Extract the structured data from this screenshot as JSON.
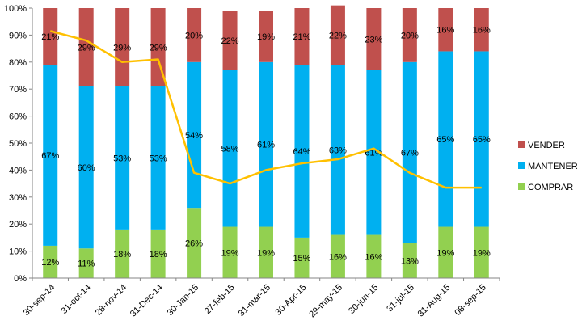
{
  "chart_data": {
    "type": "bar",
    "stacked": true,
    "categories": [
      "30-sep-14",
      "31-oct-14",
      "28-nov-14",
      "31-Dec-14",
      "30-Jan-15",
      "27-feb-15",
      "31-mar-15",
      "30-Apr-15",
      "29-may-15",
      "30-jun-15",
      "31-jul-15",
      "31-Aug-15",
      "08-sep-15"
    ],
    "series": [
      {
        "name": "COMPRAR",
        "color": "#92D050",
        "values": [
          12,
          11,
          18,
          18,
          26,
          19,
          19,
          15,
          16,
          16,
          13,
          19,
          19
        ],
        "labels": [
          "12%",
          "11%",
          "18%",
          "18%",
          "26%",
          "19%",
          "19%",
          "15%",
          "16%",
          "16%",
          "13%",
          "19%",
          "19%"
        ]
      },
      {
        "name": "MANTENER",
        "color": "#00B0F0",
        "values": [
          67,
          60,
          53,
          53,
          54,
          58,
          61,
          64,
          63,
          61,
          67,
          65,
          65
        ],
        "labels": [
          "67%",
          "60%",
          "53%",
          "53%",
          "54%",
          "58%",
          "61%",
          "64%",
          "63%",
          "61%",
          "67%",
          "65%",
          "65%"
        ]
      },
      {
        "name": "VENDER",
        "color": "#C0504D",
        "values": [
          21,
          29,
          29,
          29,
          20,
          22,
          19,
          21,
          22,
          23,
          20,
          16,
          16
        ],
        "labels": [
          "21%",
          "29%",
          "29%",
          "29%",
          "20%",
          "22%",
          "19%",
          "21%",
          "22%",
          "23%",
          "20%",
          "16%",
          "16%"
        ]
      }
    ],
    "line": {
      "color": "#FFC000",
      "values": [
        91.5,
        88,
        80,
        81,
        39,
        35,
        40,
        42.5,
        44,
        48,
        39,
        33.5,
        33.5
      ]
    },
    "ylim": [
      0,
      100
    ],
    "yticks": [
      "0%",
      "10%",
      "20%",
      "30%",
      "40%",
      "50%",
      "60%",
      "70%",
      "80%",
      "90%",
      "100%"
    ],
    "legend": {
      "placement": "right",
      "order": [
        "VENDER",
        "MANTENER",
        "COMPRAR"
      ]
    },
    "grid": false
  }
}
